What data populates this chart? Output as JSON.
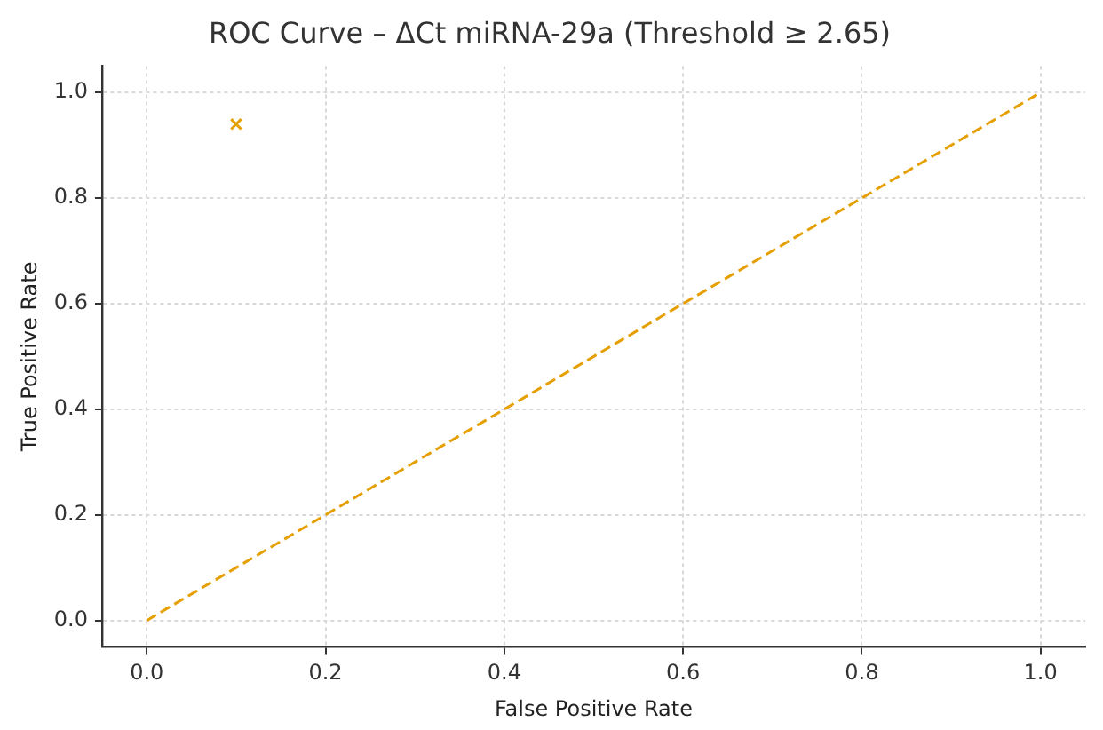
{
  "chart_data": {
    "type": "line",
    "title": "ROC Curve – ΔCt miRNA-29a (Threshold ≥ 2.65)",
    "xlabel": "False Positive Rate",
    "ylabel": "True Positive Rate",
    "xlim": [
      -0.05,
      1.05
    ],
    "ylim": [
      -0.05,
      1.05
    ],
    "xticks": [
      {
        "value": 0,
        "label": "0.0"
      },
      {
        "value": 0.2,
        "label": "0.2"
      },
      {
        "value": 0.4,
        "label": "0.4"
      },
      {
        "value": 0.6,
        "label": "0.6"
      },
      {
        "value": 0.8,
        "label": "0.8"
      },
      {
        "value": 1,
        "label": "1.0"
      }
    ],
    "yticks": [
      {
        "value": 0,
        "label": "0.0"
      },
      {
        "value": 0.2,
        "label": "0.2"
      },
      {
        "value": 0.4,
        "label": "0.4"
      },
      {
        "value": 0.6,
        "label": "0.6"
      },
      {
        "value": 0.8,
        "label": "0.8"
      },
      {
        "value": 1,
        "label": "1.0"
      }
    ],
    "grid": true,
    "series": [
      {
        "type": "scatter",
        "color": "#e69f00",
        "x": [
          0.1
        ],
        "values": [
          0.94
        ],
        "marker": "cross"
      },
      {
        "color": "#e69f00",
        "x": [
          0,
          1
        ],
        "values": [
          0,
          1
        ],
        "line_style": "dashed",
        "marker": "none"
      }
    ]
  }
}
